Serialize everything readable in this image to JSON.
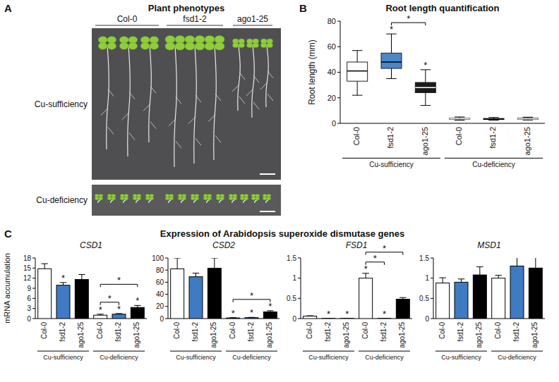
{
  "panel_a": {
    "panel": "A",
    "title": "Plant phenotypes",
    "columns": [
      "Col-0",
      "fsd1-2",
      "ago1-25"
    ],
    "rows": [
      "Cu-sufficiency",
      "Cu-deficiency"
    ]
  },
  "panel_c": {
    "panel": "C",
    "title": "Expression of Arabidopsis superoxide dismutase genes"
  },
  "chart_data": [
    {
      "type": "box",
      "panel": "B",
      "title": "Root length quantification",
      "y_label": "Root length (mm)",
      "categories": [
        "Col-0",
        "fsd1-2",
        "ago1-25",
        "Col-0",
        "fsd1-2",
        "ago1-25"
      ],
      "groups": [
        "Cu-sufficiency",
        "Cu-deficiency"
      ],
      "boxes": [
        {
          "min": 22,
          "q1": 33,
          "median": 41,
          "q3": 48,
          "max": 57
        },
        {
          "min": 35,
          "q1": 43,
          "median": 48,
          "q3": 55,
          "max": 70
        },
        {
          "min": 14,
          "q1": 24,
          "median": 28,
          "q3": 32,
          "max": 42
        },
        {
          "min": 2.5,
          "q1": 3.2,
          "median": 3.6,
          "q3": 4.0,
          "max": 5.0
        },
        {
          "min": 2.5,
          "q1": 3.0,
          "median": 3.4,
          "q3": 3.8,
          "max": 4.6
        },
        {
          "min": 2.6,
          "q1": 3.1,
          "median": 3.5,
          "q3": 4.0,
          "max": 4.8
        }
      ],
      "colors": [
        "#ffffff",
        "#4a86c8",
        "#1a1a1a",
        "#2b2b2b",
        "#6a8db5",
        "#555555"
      ],
      "ylim": [
        0,
        80
      ],
      "yticks": [
        0,
        20,
        40,
        60,
        80
      ],
      "significance_mark": "*",
      "significance": [
        1,
        2
      ],
      "brackets": [
        [
          1,
          2
        ]
      ]
    },
    {
      "type": "bar",
      "title": "CSD1",
      "y_label": "mRNA accumulation",
      "categories": [
        "Col-0",
        "fsd1-2",
        "ago1-25",
        "Col-0",
        "fsd1-2",
        "ago1-25"
      ],
      "groups": [
        "Cu-sufficiency",
        "Cu-deficiency"
      ],
      "values": [
        14.8,
        9.9,
        11.6,
        1.0,
        1.3,
        3.3
      ],
      "errors": [
        1.5,
        0.8,
        1.5,
        0.3,
        0.2,
        0.6
      ],
      "colors": [
        "#ffffff",
        "#3f7bc2",
        "#000000",
        "#ffffff",
        "#3f7bc2",
        "#000000"
      ],
      "ylim": [
        0,
        18
      ],
      "yticks": [
        0,
        3,
        6,
        9,
        12,
        15,
        18
      ],
      "significance_mark": "*",
      "significance": [
        1,
        3,
        4,
        5
      ],
      "brackets": [
        [
          3,
          4
        ],
        [
          3,
          5
        ]
      ]
    },
    {
      "type": "bar",
      "title": "CSD2",
      "categories": [
        "Col-0",
        "fsd1-2",
        "ago1-25",
        "Col-0",
        "fsd1-2",
        "ago1-25"
      ],
      "groups": [
        "Cu-sufficiency",
        "Cu-deficiency"
      ],
      "values": [
        82,
        69,
        83,
        1,
        1.5,
        11
      ],
      "errors": [
        18,
        6,
        17,
        0.5,
        0.5,
        2
      ],
      "colors": [
        "#ffffff",
        "#3f7bc2",
        "#000000",
        "#ffffff",
        "#3f7bc2",
        "#000000"
      ],
      "ylim": [
        0,
        100
      ],
      "yticks": [
        0,
        20,
        40,
        60,
        80,
        100
      ],
      "significance_mark": "*",
      "significance": [
        3,
        4,
        5
      ],
      "brackets": [
        [
          3,
          5
        ]
      ]
    },
    {
      "type": "bar",
      "title": "FSD1",
      "categories": [
        "Col-0",
        "fsd1-2",
        "ago1-25",
        "Col-0",
        "fsd1-2",
        "ago1-25"
      ],
      "groups": [
        "Cu-sufficiency",
        "Cu-deficiency"
      ],
      "values": [
        0.06,
        0.005,
        0.005,
        1.0,
        0.005,
        0.48
      ],
      "errors": [
        0.01,
        0.002,
        0.002,
        0.12,
        0.002,
        0.04
      ],
      "colors": [
        "#ffffff",
        "#3f7bc2",
        "#000000",
        "#ffffff",
        "#3f7bc2",
        "#000000"
      ],
      "ylim": [
        0,
        1.5
      ],
      "yticks": [
        0,
        0.5,
        1,
        1.5
      ],
      "significance_mark": "*",
      "significance": [
        1,
        2,
        3,
        4
      ],
      "brackets": [
        [
          3,
          4
        ],
        [
          3,
          5
        ]
      ]
    },
    {
      "type": "bar",
      "title": "MSD1",
      "categories": [
        "Col-0",
        "fsd1-2",
        "ago1-25",
        "Col-0",
        "fsd1-2",
        "ago1-25"
      ],
      "groups": [
        "Cu-sufficiency",
        "Cu-deficiency"
      ],
      "values": [
        0.88,
        0.9,
        1.08,
        1.0,
        1.3,
        1.25
      ],
      "errors": [
        0.13,
        0.08,
        0.2,
        0.07,
        0.28,
        0.35
      ],
      "colors": [
        "#ffffff",
        "#3f7bc2",
        "#000000",
        "#ffffff",
        "#3f7bc2",
        "#000000"
      ],
      "ylim": [
        0,
        1.5
      ],
      "yticks": [
        0,
        0.5,
        1,
        1.5
      ],
      "significance_mark": "*",
      "significance": [],
      "brackets": []
    }
  ]
}
